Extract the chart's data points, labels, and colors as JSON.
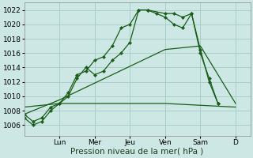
{
  "background_color": "#cde8e4",
  "grid_color": "#a8cfc8",
  "line_color": "#1a5c1a",
  "marker_color": "#1a5c1a",
  "ylim": [
    1004.5,
    1023.0
  ],
  "yticks": [
    1006,
    1008,
    1010,
    1012,
    1014,
    1016,
    1018,
    1020,
    1022
  ],
  "xlabel": "Pression niveau de la mer( hPa )",
  "xlabel_fontsize": 7.5,
  "tick_fontsize": 6.5,
  "day_labels": [
    "Lun",
    "Mer",
    "Jeu",
    "Ven",
    "Sam",
    "D"
  ],
  "day_positions": [
    24,
    48,
    72,
    96,
    120,
    144
  ],
  "xlim": [
    0,
    154
  ],
  "series1_x": [
    0,
    6,
    12,
    18,
    24,
    30,
    36,
    42,
    48,
    54,
    60,
    66,
    72,
    78,
    84,
    90,
    96,
    102,
    108,
    114,
    120,
    126,
    132
  ],
  "series1_y": [
    1007.0,
    1006.0,
    1006.5,
    1008.0,
    1009.0,
    1010.5,
    1013.0,
    1013.5,
    1015.0,
    1015.5,
    1017.0,
    1019.5,
    1020.0,
    1022.0,
    1022.0,
    1021.5,
    1021.0,
    1020.0,
    1019.5,
    1021.5,
    1016.0,
    1012.5,
    1009.0
  ],
  "series2_x": [
    0,
    6,
    12,
    18,
    24,
    30,
    36,
    42,
    48,
    54,
    60,
    66,
    72,
    78,
    84,
    96,
    102,
    108,
    114,
    120,
    126,
    132
  ],
  "series2_y": [
    1007.5,
    1006.5,
    1007.0,
    1008.5,
    1009.0,
    1010.0,
    1012.5,
    1014.0,
    1013.0,
    1013.5,
    1015.0,
    1016.0,
    1017.5,
    1022.0,
    1022.0,
    1021.5,
    1021.5,
    1021.0,
    1021.5,
    1016.5,
    1012.0,
    1009.0
  ],
  "series3_x": [
    0,
    24,
    96,
    144
  ],
  "series3_y": [
    1008.5,
    1009.0,
    1009.0,
    1008.5
  ],
  "series4_x": [
    0,
    24,
    96,
    120,
    144
  ],
  "series4_y": [
    1007.5,
    1009.5,
    1016.5,
    1017.0,
    1009.0
  ]
}
